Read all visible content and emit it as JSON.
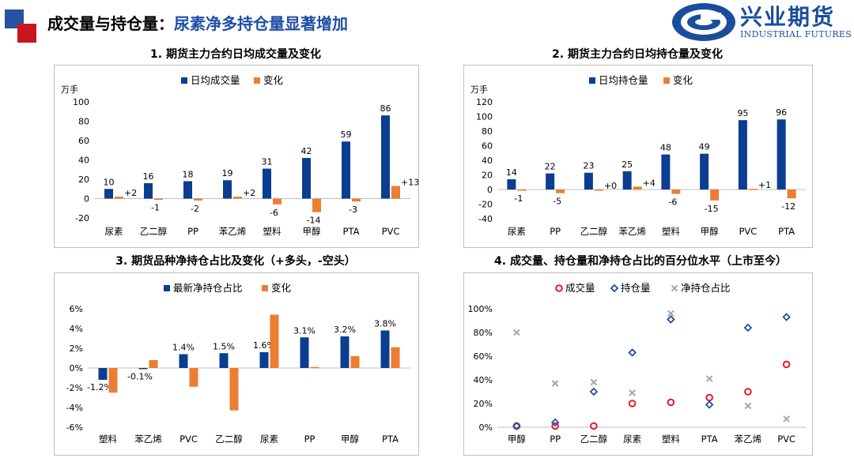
{
  "header": {
    "title_prefix": "成交量与持仓量：",
    "title_highlight": "尿素净多持仓量显著增加",
    "logo_cn": "兴业期货",
    "logo_en": "INDUSTRIAL FUTURES"
  },
  "colors": {
    "blue": "#0b3d91",
    "orange": "#ed7d31",
    "red": "#e8192c",
    "gray": "#a6a6a6",
    "diamond": "#1f4ea8"
  },
  "chart_data": [
    {
      "id": "c1",
      "type": "bar",
      "title": "1. 期货主力合约日均成交量及变化",
      "unit_label": "万手",
      "categories": [
        "尿素",
        "乙二醇",
        "PP",
        "苯乙烯",
        "塑料",
        "甲醇",
        "PTA",
        "PVC"
      ],
      "series": [
        {
          "name": "日均成交量",
          "values": [
            10,
            16,
            18,
            19,
            31,
            42,
            59,
            86
          ],
          "labels": [
            "10",
            "16",
            "18",
            "19",
            "31",
            "42",
            "59",
            "86"
          ]
        },
        {
          "name": "变化",
          "values": [
            2,
            -1,
            -2,
            2,
            -6,
            -14,
            -3,
            13
          ],
          "labels": [
            "+2",
            "-1",
            "-2",
            "+2",
            "-6",
            "-14",
            "-3",
            "+13"
          ]
        }
      ],
      "ylim": [
        -20,
        100
      ],
      "yticks": [
        "-20",
        "0",
        "20",
        "40",
        "60",
        "80",
        "100"
      ],
      "legend": "top"
    },
    {
      "id": "c2",
      "type": "bar",
      "title": "2. 期货主力合约日均持仓量及变化",
      "unit_label": "万手",
      "categories": [
        "尿素",
        "PP",
        "乙二醇",
        "苯乙烯",
        "塑料",
        "甲醇",
        "PVC",
        "PTA"
      ],
      "series": [
        {
          "name": "日均持仓量",
          "values": [
            14,
            22,
            23,
            25,
            48,
            49,
            95,
            96
          ],
          "labels": [
            "14",
            "22",
            "23",
            "25",
            "48",
            "49",
            "95",
            "96"
          ]
        },
        {
          "name": "变化",
          "values": [
            -1,
            -5,
            0,
            4,
            -6,
            -15,
            1,
            -12
          ],
          "labels": [
            "-1",
            "-5",
            "+0",
            "+4",
            "-6",
            "-15",
            "+1",
            "-12"
          ]
        }
      ],
      "ylim": [
        -40,
        120
      ],
      "yticks": [
        "-40",
        "-20",
        "0",
        "20",
        "40",
        "60",
        "80",
        "100",
        "120"
      ],
      "legend": "top"
    },
    {
      "id": "c3",
      "type": "bar",
      "title": "3. 期货品种净持仓占比及变化（+多头，-空头）",
      "categories": [
        "塑料",
        "苯乙烯",
        "PVC",
        "乙二醇",
        "尿素",
        "PP",
        "甲醇",
        "PTA"
      ],
      "series": [
        {
          "name": "最新净持仓占比",
          "values": [
            -1.2,
            -0.1,
            1.4,
            1.5,
            1.6,
            3.1,
            3.2,
            3.8
          ],
          "labels": [
            "-1.2%",
            "-0.1%",
            "1.4%",
            "1.5%",
            "1.6%",
            "3.1%",
            "3.2%",
            "3.8%"
          ]
        },
        {
          "name": "变化",
          "values": [
            -2.5,
            0.8,
            -1.9,
            -4.3,
            5.4,
            0.1,
            1.2,
            2.1
          ]
        }
      ],
      "ylim": [
        -6,
        6
      ],
      "yticks": [
        "-6%",
        "-4%",
        "-2%",
        "0%",
        "2%",
        "4%",
        "6%"
      ],
      "legend": "top"
    },
    {
      "id": "c4",
      "type": "scatter",
      "title": "4. 成交量、持仓量和净持仓占比的百分位水平（上市至今）",
      "categories": [
        "甲醇",
        "PP",
        "乙二醇",
        "尿素",
        "塑料",
        "PTA",
        "苯乙烯",
        "PVC"
      ],
      "series": [
        {
          "name": "成交量",
          "marker": "circle",
          "values": [
            1,
            1,
            1,
            20,
            21,
            25,
            30,
            53
          ]
        },
        {
          "name": "持仓量",
          "marker": "diamond",
          "values": [
            1,
            4,
            30,
            63,
            91,
            19,
            84,
            93
          ]
        },
        {
          "name": "净持仓占比",
          "marker": "x",
          "values": [
            80,
            37,
            38,
            29,
            96,
            41,
            18,
            7
          ]
        }
      ],
      "ylim": [
        0,
        100
      ],
      "yticks": [
        "0%",
        "20%",
        "40%",
        "60%",
        "80%",
        "100%"
      ],
      "legend": "top"
    }
  ]
}
